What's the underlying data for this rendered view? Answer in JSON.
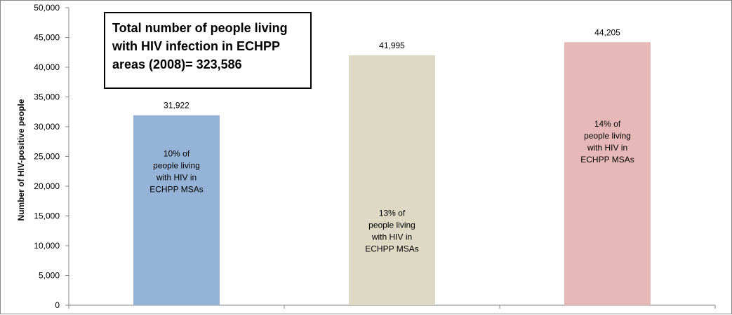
{
  "chart_data": {
    "type": "bar",
    "categories": [
      "",
      "",
      ""
    ],
    "values": [
      31922,
      41995,
      44205
    ],
    "value_labels": [
      "31,922",
      "41,995",
      "44,205"
    ],
    "bar_colors": [
      "#95b3d7",
      "#ddd9c4",
      "#e6b9b8"
    ],
    "inner_labels": [
      [
        "10% of",
        "people living",
        "with HIV in",
        "ECHPP MSAs"
      ],
      [
        "13% of",
        "people living",
        "with HIV in",
        "ECHPP MSAs"
      ],
      [
        "14% of",
        "people living",
        "with HIV in",
        "ECHPP MSAs"
      ]
    ],
    "inner_label_anchor_values": [
      22500,
      12500,
      27500
    ],
    "title": "",
    "xlabel": "",
    "ylabel": "Number of HIV-positive people",
    "ylim": [
      0,
      50000
    ],
    "yticks": [
      0,
      5000,
      10000,
      15000,
      20000,
      25000,
      30000,
      35000,
      40000,
      45000,
      50000
    ],
    "ytick_labels": [
      "0",
      "5,000",
      "10,000",
      "15,000",
      "20,000",
      "25,000",
      "30,000",
      "35,000",
      "40,000",
      "45,000",
      "50,000"
    ],
    "grid": false,
    "legend": "none"
  },
  "callout": {
    "lines": [
      "Total number of people living",
      "with HIV infection in ECHPP",
      "areas (2008)= 323,586"
    ]
  }
}
